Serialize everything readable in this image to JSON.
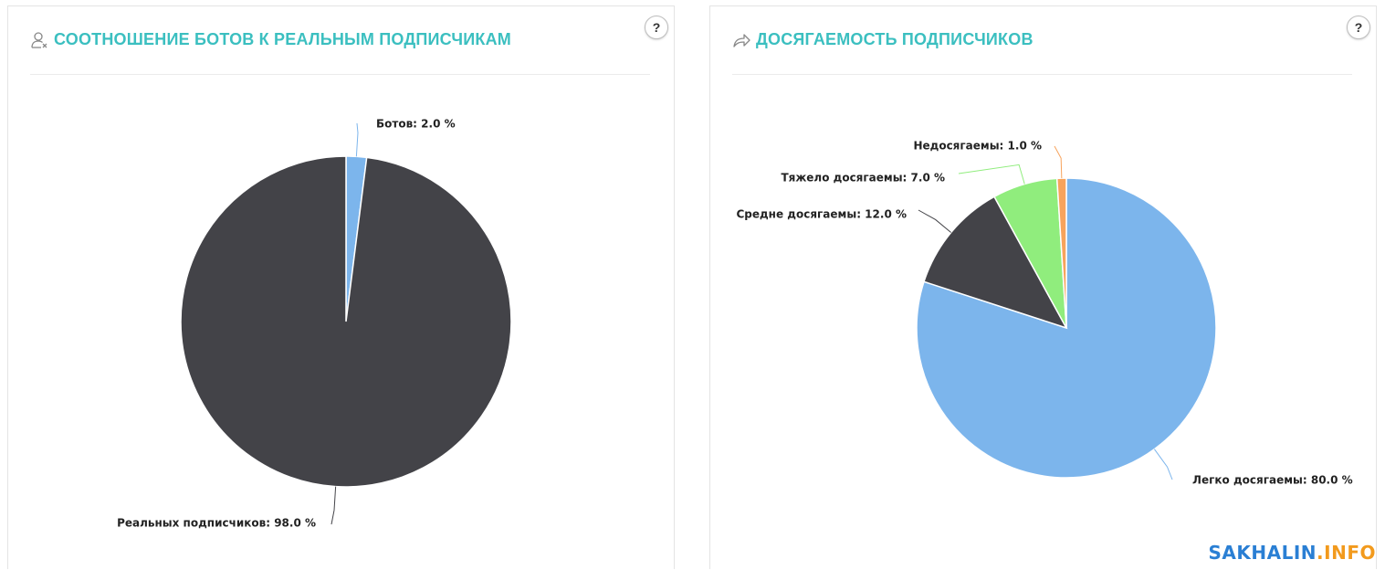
{
  "panels": [
    {
      "title": "СООТНОШЕНИЕ БОТОВ К РЕАЛЬНЫМ ПОДПИСЧИКАМ",
      "icon": "user-x-icon",
      "help_label": "?"
    },
    {
      "title": "ДОСЯГАЕМОСТЬ ПОДПИСЧИКОВ",
      "icon": "share-arrow-icon",
      "help_label": "?"
    }
  ],
  "watermark": {
    "part1": "SAKHALIN",
    "part2": ".INFO"
  },
  "colors": {
    "accent": "#3bbfc0",
    "dark": "#434348",
    "blue": "#7cb5ec",
    "green": "#90ed7d",
    "orange": "#f7a35c"
  },
  "chart_data": [
    {
      "type": "pie",
      "title": "СООТНОШЕНИЕ БОТОВ К РЕАЛЬНЫМ ПОДПИСЧИКАМ",
      "slices": [
        {
          "label": "Ботов",
          "value": 2.0,
          "color": "#7cb5ec",
          "label_text": "Ботов: 2.0 %"
        },
        {
          "label": "Реальных подписчиков",
          "value": 98.0,
          "color": "#434348",
          "label_text": "Реальных подписчиков: 98.0 %"
        }
      ]
    },
    {
      "type": "pie",
      "title": "ДОСЯГАЕМОСТЬ ПОДПИСЧИКОВ",
      "slices": [
        {
          "label": "Легко досягаемы",
          "value": 80.0,
          "color": "#7cb5ec",
          "label_text": "Легко досягаемы: 80.0 %"
        },
        {
          "label": "Средне досягаемы",
          "value": 12.0,
          "color": "#434348",
          "label_text": "Средне досягаемы: 12.0 %"
        },
        {
          "label": "Тяжело досягаемы",
          "value": 7.0,
          "color": "#90ed7d",
          "label_text": "Тяжело досягаемы: 7.0 %"
        },
        {
          "label": "Недосягаемы",
          "value": 1.0,
          "color": "#f7a35c",
          "label_text": "Недосягаемы: 1.0 %"
        }
      ]
    }
  ]
}
